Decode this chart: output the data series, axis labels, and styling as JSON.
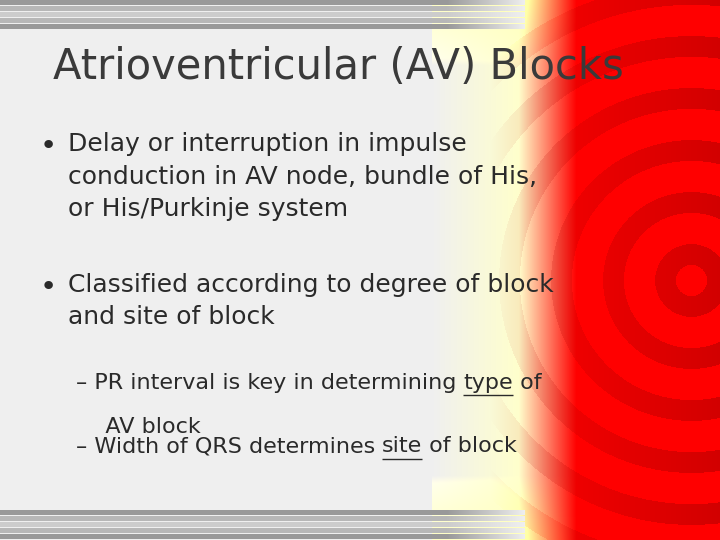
{
  "title": "Atrioventricular (AV) Blocks",
  "bullet1_line1": "Delay or interruption in impulse",
  "bullet1_line2": "conduction in AV node, bundle of His,",
  "bullet1_line3": "or His/Purkinje system",
  "bullet2_line1": "Classified according to degree of block",
  "bullet2_line2": "and site of block",
  "sub1_pre": "– PR interval is key in determining ",
  "sub1_word": "type",
  "sub1_post": " of",
  "sub1_line2": "   AV block",
  "sub2_pre": "– Width of QRS determines ",
  "sub2_word": "site",
  "sub2_post": " of block",
  "text_color": "#2a2a2a",
  "title_color": "#3a3a3a",
  "title_fontsize": 30,
  "bullet_fontsize": 18,
  "sub_fontsize": 16,
  "figsize": [
    7.2,
    5.4
  ],
  "dpi": 100
}
